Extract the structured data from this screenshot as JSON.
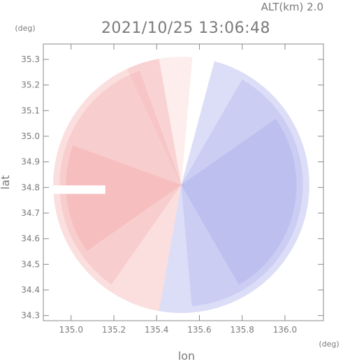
{
  "chart_data": {
    "type": "heatmap",
    "header": "ALT(km) 2.0",
    "title": "2021/10/25 13:06:48",
    "ylabel": "lat",
    "xlabel": "lon",
    "y_unit": "(deg)",
    "x_unit": "(deg)",
    "x_ticks": [
      135.0,
      135.2,
      135.4,
      135.6,
      135.8,
      136.0
    ],
    "x_tick_labels": [
      "135.0",
      "135.2",
      "135.4",
      "135.6",
      "135.8",
      "136.0"
    ],
    "y_ticks": [
      34.3,
      34.4,
      34.5,
      34.6,
      34.7,
      34.8,
      34.9,
      35.0,
      35.1,
      35.2,
      35.3
    ],
    "y_tick_labels": [
      "34.3",
      "34.4",
      "34.5",
      "34.6",
      "34.7",
      "34.8",
      "34.9",
      "35.0",
      "35.1",
      "35.2",
      "35.3"
    ],
    "xlim": [
      134.87,
      136.18
    ],
    "ylim": [
      34.28,
      35.36
    ],
    "coverage_circle": {
      "center_lon": 135.515,
      "center_lat": 34.81,
      "radius_deg_lat": 0.5
    },
    "no_data_notch": {
      "lon": [
        134.87,
        135.16
      ],
      "lat": [
        34.775,
        34.808
      ]
    },
    "colors": {
      "positive": "#f3a4a4",
      "negative": "#9a9ee9",
      "zero": "#ffffff"
    }
  }
}
